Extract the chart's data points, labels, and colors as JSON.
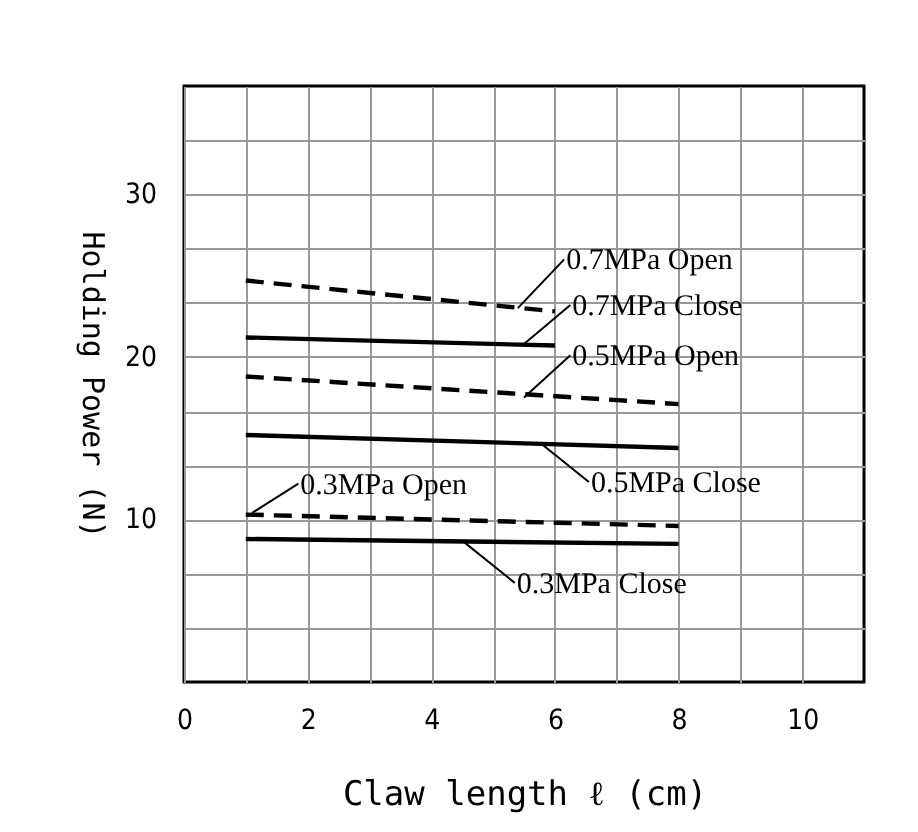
{
  "chart_data": {
    "type": "line",
    "xlabel": "Claw length  ℓ  (cm)",
    "ylabel": "Holding Power (N)",
    "xlim": [
      0,
      11
    ],
    "ylim": [
      0,
      36.67
    ],
    "xticks": [
      0,
      {
        "value": 1,
        "label": null
      },
      2,
      {
        "value": 3,
        "label": null
      },
      4,
      {
        "value": 5,
        "label": null
      },
      6,
      {
        "value": 7,
        "label": null
      },
      8,
      {
        "value": 9,
        "label": null
      },
      10
    ],
    "yticks": [
      {
        "value": 3.33,
        "label": null
      },
      {
        "value": 6.67,
        "label": null
      },
      10,
      {
        "value": 13.33,
        "label": null
      },
      {
        "value": 16.67,
        "label": null
      },
      20,
      {
        "value": 23.33,
        "label": null
      },
      {
        "value": 26.67,
        "label": null
      },
      30,
      {
        "value": 33.33,
        "label": null
      }
    ],
    "grid": true,
    "marker": "none",
    "series": [
      {
        "color": "#000000",
        "line_style": "dashed",
        "x": [
          1,
          6
        ],
        "values": [
          24.7,
          22.8
        ]
      },
      {
        "color": "#000000",
        "line_style": "solid",
        "x": [
          1,
          6
        ],
        "values": [
          21.2,
          20.7
        ]
      },
      {
        "color": "#000000",
        "line_style": "dashed",
        "x": [
          1,
          8
        ],
        "values": [
          18.8,
          17.1
        ]
      },
      {
        "color": "#000000",
        "line_style": "solid",
        "x": [
          1,
          8
        ],
        "values": [
          15.2,
          14.4
        ]
      },
      {
        "color": "#000000",
        "line_style": "dashed",
        "x": [
          1,
          8
        ],
        "values": [
          10.3,
          9.6
        ]
      },
      {
        "color": "#000000",
        "line_style": "solid",
        "x": [
          1,
          8
        ],
        "values": [
          8.8,
          8.5
        ]
      }
    ],
    "annotations": [
      {
        "text": "0.7MPa Open",
        "x": 5.4,
        "y": 23.0
      },
      {
        "text": "0.7MPa Close",
        "x": 5.5,
        "y": 20.8
      },
      {
        "text": "0.5MPa Open",
        "x": 5.5,
        "y": 17.5
      },
      {
        "text": "0.5MPa Close",
        "x": 5.8,
        "y": 14.6
      },
      {
        "text": "0.3MPa Open",
        "x": 1.1,
        "y": 10.4
      },
      {
        "text": "0.3MPa Close",
        "x": 4.5,
        "y": 8.7
      }
    ]
  }
}
